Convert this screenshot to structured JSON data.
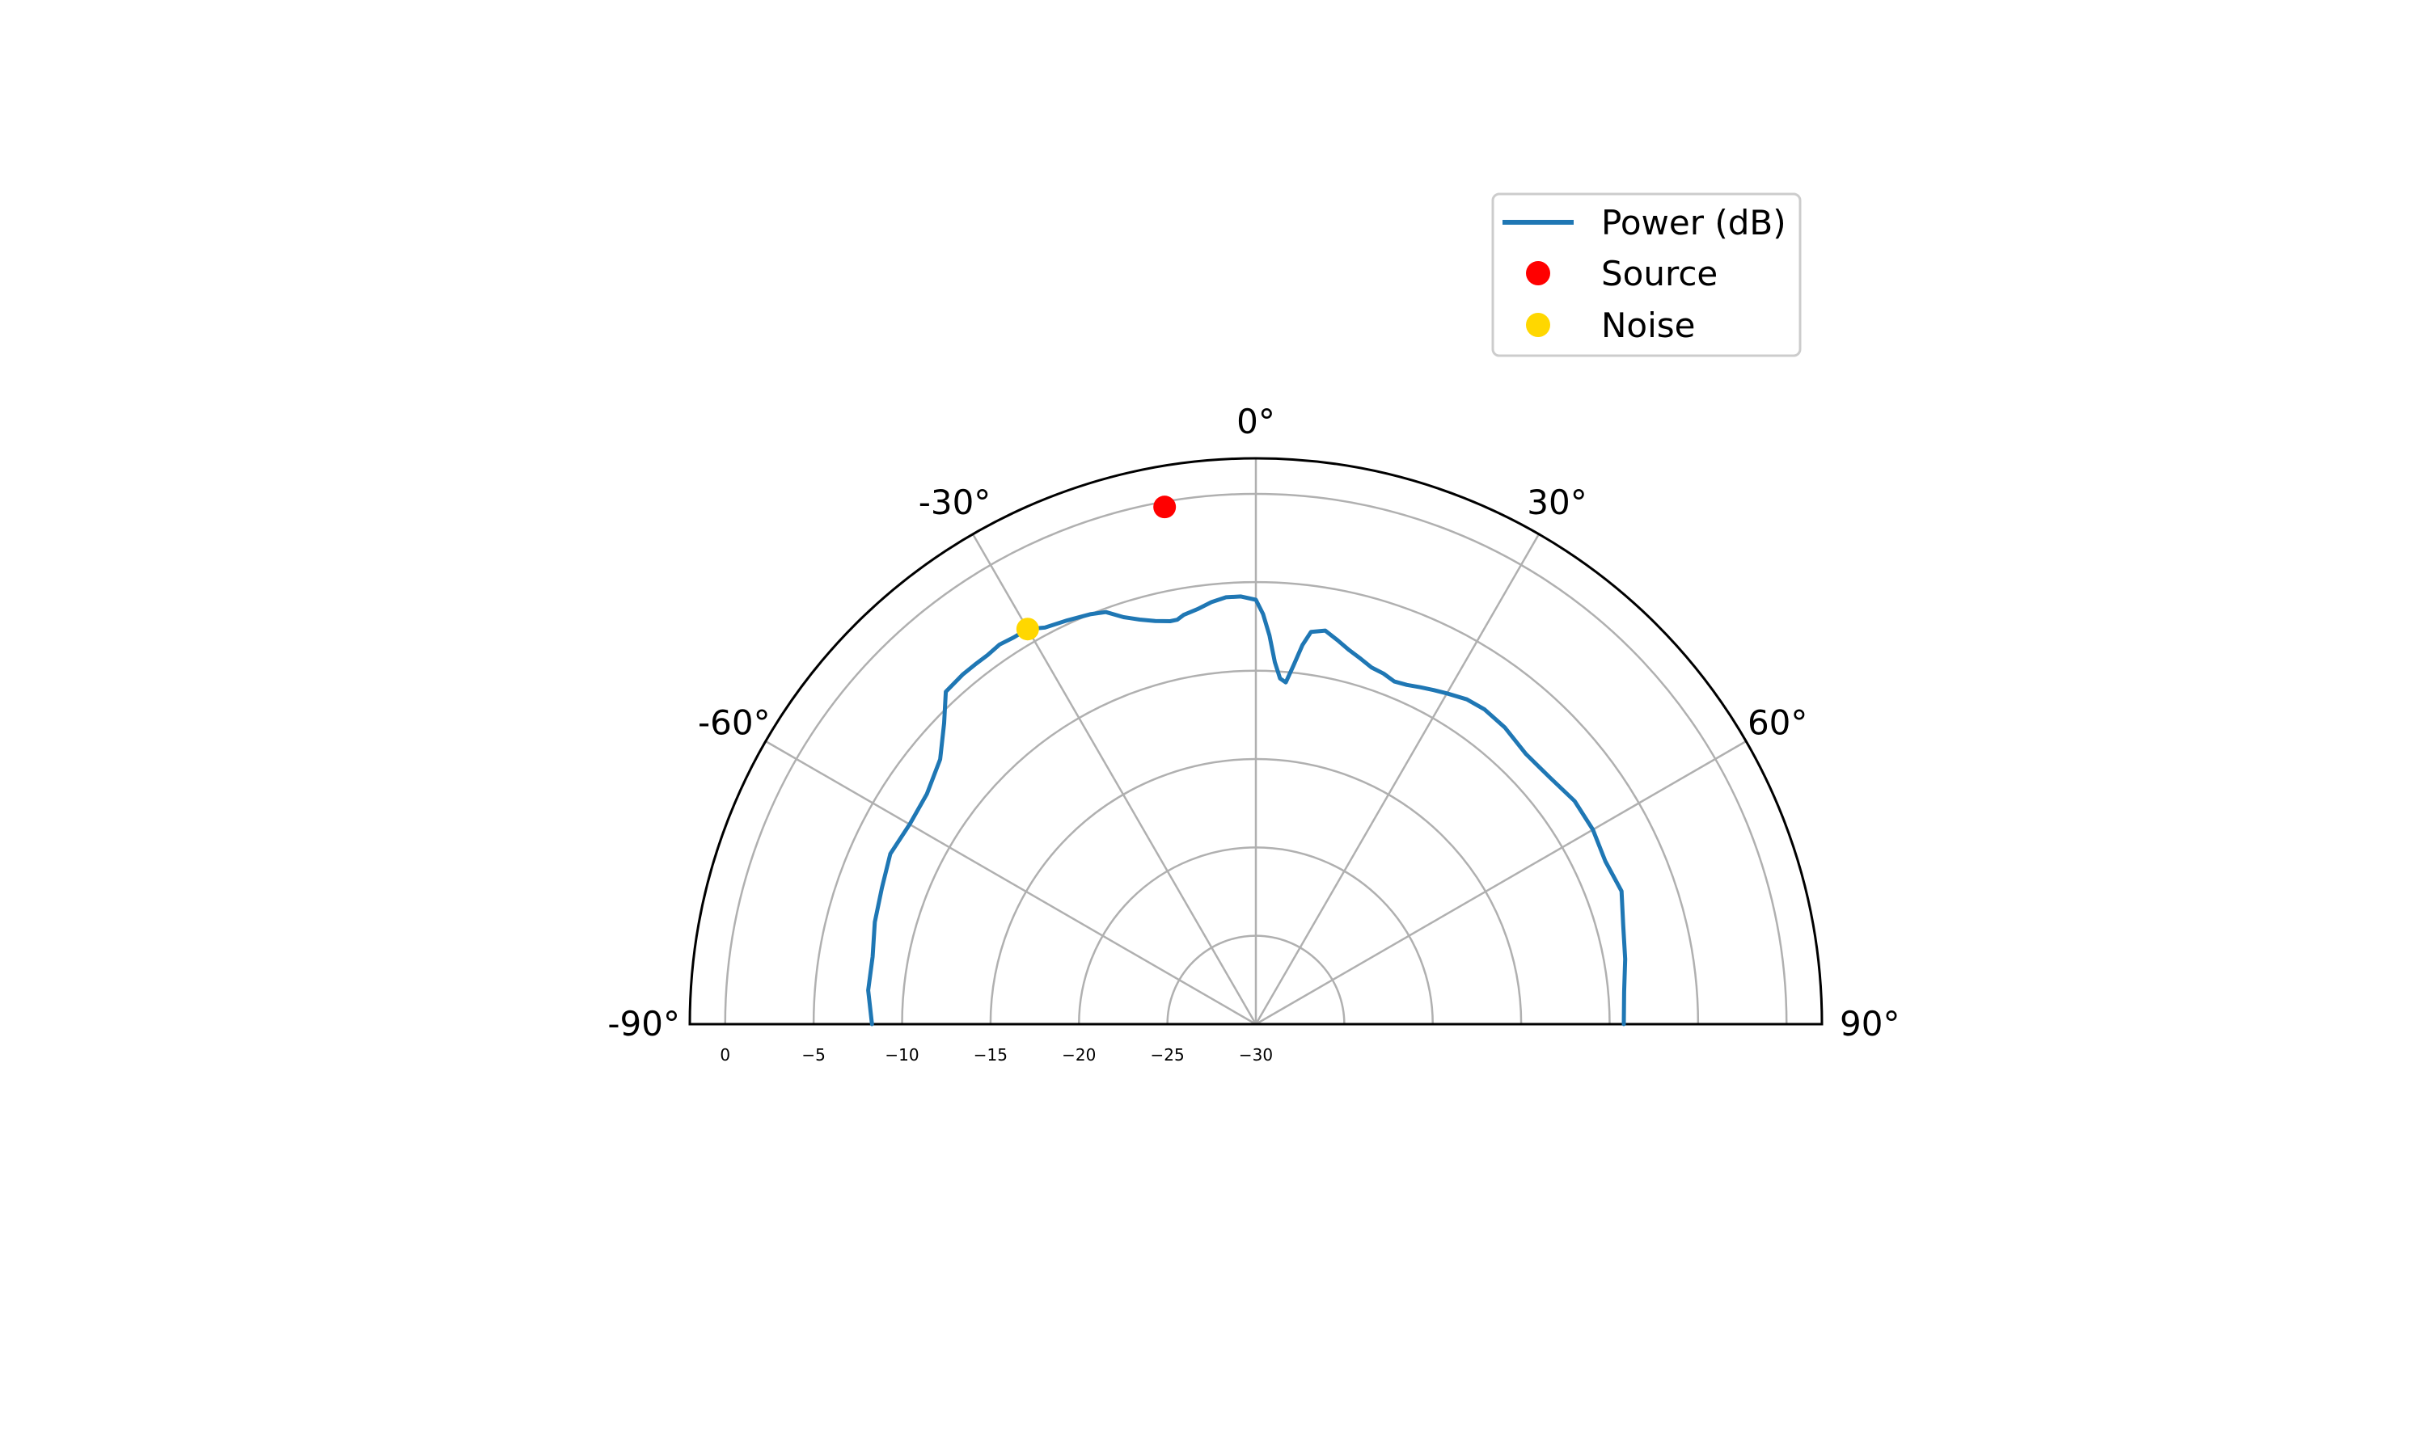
{
  "chart_data": {
    "type": "line",
    "projection": "polar-half",
    "theta_range_deg": [
      -90,
      90
    ],
    "r_range_db": [
      -30,
      2
    ],
    "theta_ticks": [
      "-90°",
      "-60°",
      "-30°",
      "0°",
      "30°",
      "60°",
      "90°"
    ],
    "theta_tick_values": [
      -90,
      -60,
      -30,
      0,
      30,
      60,
      90
    ],
    "r_ticks": [
      "0",
      "−5",
      "−10",
      "−15",
      "−20",
      "−25",
      "−30"
    ],
    "r_tick_values": [
      0,
      -5,
      -10,
      -15,
      -20,
      -25,
      -30
    ],
    "grid": true,
    "legend_position": "upper-right",
    "series": [
      {
        "name": "Power (dB)",
        "kind": "line",
        "color": "#1f77b4",
        "theta": [
          -90,
          -85,
          -80,
          -75,
          -70,
          -65,
          -60,
          -55,
          -50,
          -46,
          -43,
          -40,
          -38,
          -36,
          -34,
          -32,
          -30,
          -28,
          -25,
          -22,
          -20,
          -18,
          -16,
          -14,
          -12,
          -11,
          -10,
          -8,
          -6,
          -4,
          -2,
          0,
          1,
          2,
          3,
          4,
          5,
          6,
          7,
          8,
          10,
          12,
          14,
          16,
          18,
          20,
          22,
          24,
          26,
          28,
          30,
          33,
          36,
          40,
          45,
          50,
          55,
          60,
          65,
          70,
          75,
          80,
          85,
          90
        ],
        "r": [
          -8.3,
          -8.0,
          -8.0,
          -7.7,
          -7.5,
          -7.2,
          -7.4,
          -7.3,
          -6.7,
          -5.5,
          -4.3,
          -4.2,
          -4.2,
          -4.2,
          -4.1,
          -4.2,
          -4.2,
          -4.6,
          -4.8,
          -5.0,
          -5.2,
          -5.8,
          -6.2,
          -6.5,
          -6.7,
          -6.7,
          -6.5,
          -6.3,
          -6.0,
          -5.8,
          -5.8,
          -6.0,
          -6.8,
          -8.0,
          -9.5,
          -10.4,
          -10.6,
          -9.6,
          -8.4,
          -7.6,
          -7.4,
          -7.8,
          -8.2,
          -8.5,
          -8.8,
          -8.9,
          -9.1,
          -9.0,
          -8.8,
          -8.6,
          -8.4,
          -8.1,
          -8.0,
          -8.1,
          -8.4,
          -8.3,
          -8.0,
          -8.0,
          -8.2,
          -8.0,
          -8.5,
          -8.8,
          -9.1,
          -9.2
        ]
      },
      {
        "name": "Source",
        "kind": "point",
        "color": "#ff0000",
        "theta": [
          -10
        ],
        "r": [
          -0.3
        ]
      },
      {
        "name": "Noise",
        "kind": "point",
        "color": "#ffd700",
        "theta": [
          -30
        ],
        "r": [
          -4.2
        ]
      }
    ]
  }
}
